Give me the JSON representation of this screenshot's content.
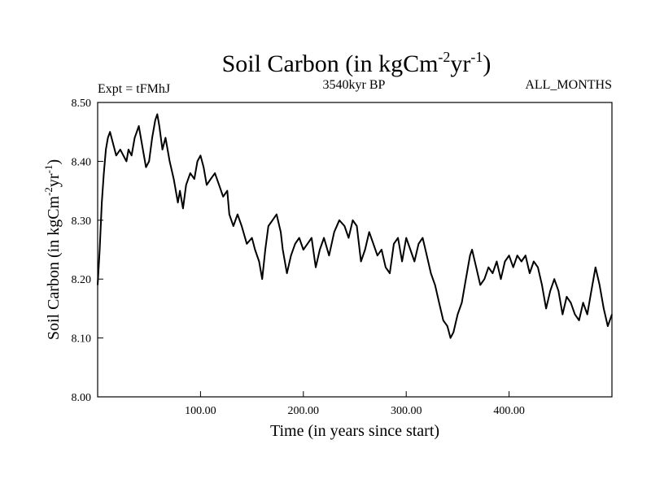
{
  "chart_data": {
    "type": "line",
    "title": {
      "main": "Soil Carbon (in kgCm",
      "sup1": "-2",
      "mid": "yr",
      "sup2": "-1",
      "end": ")"
    },
    "subtitle_left": "Expt = tFMhJ",
    "subtitle_center": "3540kyr BP",
    "subtitle_right": "ALL_MONTHS",
    "xlabel": "Time (in years since start)",
    "ylabel": {
      "main": "Soil Carbon (in kgCm",
      "sup1": "-2",
      "mid": "yr",
      "sup2": "-1",
      "end": ")"
    },
    "xlim": [
      0,
      500
    ],
    "ylim": [
      8.0,
      8.5
    ],
    "xticks": [
      {
        "value": 100,
        "label": "100.00"
      },
      {
        "value": 200,
        "label": "200.00"
      },
      {
        "value": 300,
        "label": "300.00"
      },
      {
        "value": 400,
        "label": "400.00"
      }
    ],
    "yticks": [
      {
        "value": 8.0,
        "label": "8.00"
      },
      {
        "value": 8.1,
        "label": "8.10"
      },
      {
        "value": 8.2,
        "label": "8.20"
      },
      {
        "value": 8.3,
        "label": "8.30"
      },
      {
        "value": 8.4,
        "label": "8.40"
      },
      {
        "value": 8.5,
        "label": "8.50"
      }
    ],
    "grid": false,
    "line_color": "#000000",
    "series": [
      {
        "x": [
          0,
          2,
          4,
          6,
          8,
          10,
          12,
          15,
          18,
          22,
          25,
          28,
          30,
          33,
          36,
          40,
          44,
          47,
          50,
          53,
          56,
          58,
          60,
          63,
          66,
          70,
          74,
          78,
          80,
          83,
          86,
          90,
          94,
          97,
          100,
          103,
          106,
          110,
          114,
          118,
          122,
          126,
          128,
          132,
          136,
          140,
          145,
          150,
          153,
          157,
          160,
          163,
          166,
          170,
          174,
          178,
          180,
          184,
          188,
          192,
          196,
          200,
          204,
          208,
          212,
          216,
          220,
          225,
          230,
          235,
          240,
          244,
          248,
          252,
          256,
          260,
          264,
          268,
          272,
          276,
          280,
          284,
          288,
          292,
          296,
          300,
          304,
          308,
          312,
          316,
          320,
          324,
          328,
          332,
          336,
          340,
          343,
          346,
          350,
          354,
          358,
          362,
          364,
          368,
          372,
          376,
          380,
          384,
          388,
          392,
          396,
          400,
          404,
          408,
          412,
          416,
          420,
          424,
          428,
          432,
          436,
          440,
          444,
          448,
          452,
          456,
          460,
          464,
          468,
          472,
          476,
          480,
          484,
          488,
          492,
          496,
          500
        ],
        "y": [
          8.19,
          8.25,
          8.33,
          8.38,
          8.42,
          8.44,
          8.45,
          8.43,
          8.41,
          8.42,
          8.41,
          8.4,
          8.42,
          8.41,
          8.44,
          8.46,
          8.42,
          8.39,
          8.4,
          8.44,
          8.47,
          8.48,
          8.46,
          8.42,
          8.44,
          8.4,
          8.37,
          8.33,
          8.35,
          8.32,
          8.36,
          8.38,
          8.37,
          8.4,
          8.41,
          8.39,
          8.36,
          8.37,
          8.38,
          8.36,
          8.34,
          8.35,
          8.31,
          8.29,
          8.31,
          8.29,
          8.26,
          8.27,
          8.25,
          8.23,
          8.2,
          8.25,
          8.29,
          8.3,
          8.31,
          8.28,
          8.25,
          8.21,
          8.24,
          8.26,
          8.27,
          8.25,
          8.26,
          8.27,
          8.22,
          8.25,
          8.27,
          8.24,
          8.28,
          8.3,
          8.29,
          8.27,
          8.3,
          8.29,
          8.23,
          8.25,
          8.28,
          8.26,
          8.24,
          8.25,
          8.22,
          8.21,
          8.26,
          8.27,
          8.23,
          8.27,
          8.25,
          8.23,
          8.26,
          8.27,
          8.24,
          8.21,
          8.19,
          8.16,
          8.13,
          8.12,
          8.1,
          8.11,
          8.14,
          8.16,
          8.2,
          8.24,
          8.25,
          8.22,
          8.19,
          8.2,
          8.22,
          8.21,
          8.23,
          8.2,
          8.23,
          8.24,
          8.22,
          8.24,
          8.23,
          8.24,
          8.21,
          8.23,
          8.22,
          8.19,
          8.15,
          8.18,
          8.2,
          8.18,
          8.14,
          8.17,
          8.16,
          8.14,
          8.13,
          8.16,
          8.14,
          8.18,
          8.22,
          8.19,
          8.15,
          8.12,
          8.14
        ]
      }
    ]
  }
}
